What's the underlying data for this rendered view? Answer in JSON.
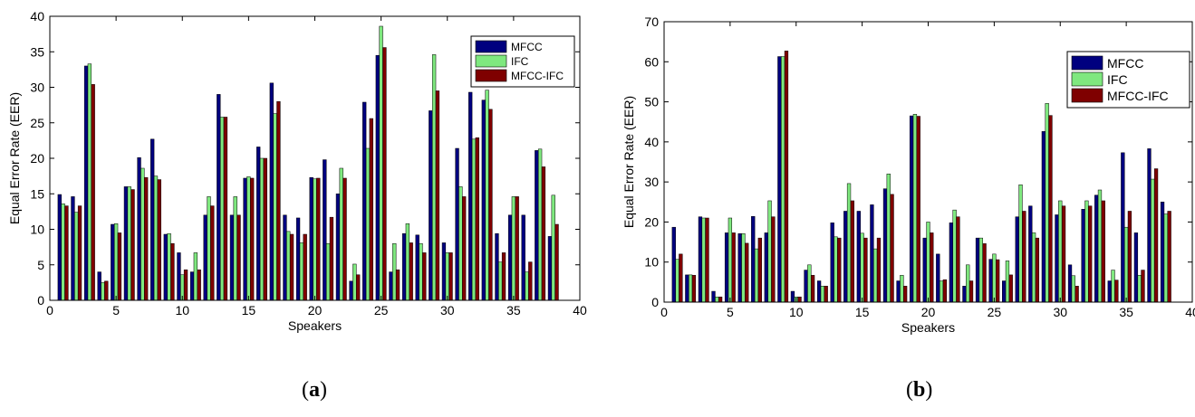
{
  "colors": {
    "MFCC": "#00007f",
    "IFC": "#7fe87f",
    "MFCC-IFC": "#7f0000"
  },
  "panel_labels": {
    "a": "a",
    "b": "b"
  },
  "chart_data": [
    {
      "type": "bar",
      "panel": "(a)",
      "xlabel": "Speakers",
      "ylabel": "Equal Error Rate (EER)",
      "xlim": [
        0,
        40
      ],
      "ylim": [
        0,
        40
      ],
      "xticks": [
        0,
        5,
        10,
        15,
        20,
        25,
        30,
        35,
        40
      ],
      "yticks": [
        0,
        5,
        10,
        15,
        20,
        25,
        30,
        35,
        40
      ],
      "legend": "top-right",
      "x": [
        1,
        2,
        3,
        4,
        5,
        6,
        7,
        8,
        9,
        10,
        11,
        12,
        13,
        14,
        15,
        16,
        17,
        18,
        19,
        20,
        21,
        22,
        23,
        24,
        25,
        26,
        27,
        28,
        29,
        30,
        31,
        32,
        33,
        34,
        35,
        36,
        37,
        38
      ],
      "series": [
        {
          "name": "MFCC",
          "values": [
            14.9,
            14.6,
            33.0,
            4.0,
            10.7,
            16.0,
            20.1,
            22.7,
            9.3,
            6.7,
            4.0,
            12.0,
            29.0,
            12.0,
            17.2,
            21.6,
            30.6,
            12.0,
            11.6,
            17.3,
            19.8,
            15.0,
            2.7,
            27.9,
            34.5,
            4.0,
            9.4,
            9.2,
            26.7,
            8.1,
            21.4,
            29.3,
            28.2,
            9.4,
            12.0,
            12.0,
            21.1,
            9.0
          ]
        },
        {
          "name": "IFC",
          "values": [
            13.6,
            12.4,
            33.3,
            2.5,
            10.8,
            16.0,
            18.6,
            17.5,
            9.4,
            3.6,
            6.7,
            14.6,
            25.8,
            14.6,
            17.4,
            20.0,
            26.3,
            9.7,
            8.1,
            17.1,
            8.0,
            18.6,
            5.1,
            21.4,
            38.6,
            8.0,
            10.8,
            8.0,
            34.6,
            6.7,
            16.0,
            22.7,
            29.6,
            5.4,
            14.6,
            4.0,
            21.3,
            14.8
          ]
        },
        {
          "name": "MFCC-IFC",
          "values": [
            13.3,
            13.3,
            30.4,
            2.7,
            9.5,
            15.6,
            17.3,
            17.0,
            8.0,
            4.3,
            4.3,
            13.3,
            25.8,
            12.0,
            17.2,
            20.0,
            28.0,
            9.3,
            9.3,
            17.2,
            11.7,
            17.2,
            3.6,
            25.6,
            35.6,
            4.3,
            8.1,
            6.7,
            29.5,
            6.7,
            14.6,
            22.9,
            26.9,
            6.7,
            14.6,
            5.4,
            18.8,
            10.7
          ]
        }
      ]
    },
    {
      "type": "bar",
      "panel": "(b)",
      "xlabel": "Speakers",
      "ylabel": "Equal Error Rate (EER)",
      "xlim": [
        0,
        40
      ],
      "ylim": [
        0,
        70
      ],
      "xticks": [
        0,
        5,
        10,
        15,
        20,
        25,
        30,
        35,
        40
      ],
      "yticks": [
        0,
        10,
        20,
        30,
        40,
        50,
        60,
        70
      ],
      "legend": "top-right",
      "x": [
        1,
        2,
        3,
        4,
        5,
        6,
        7,
        8,
        9,
        10,
        11,
        12,
        13,
        14,
        15,
        16,
        17,
        18,
        19,
        20,
        21,
        22,
        23,
        24,
        25,
        26,
        27,
        28,
        29,
        30,
        31,
        32,
        33,
        34,
        35,
        36,
        37,
        38
      ],
      "series": [
        {
          "name": "MFCC",
          "values": [
            18.7,
            6.8,
            21.3,
            2.7,
            17.3,
            17.1,
            21.4,
            17.3,
            61.3,
            2.7,
            8.0,
            5.3,
            19.8,
            22.7,
            22.7,
            24.3,
            28.3,
            5.3,
            46.5,
            16.0,
            12.0,
            19.8,
            4.0,
            16.0,
            10.7,
            5.3,
            21.3,
            24.0,
            42.6,
            21.8,
            9.3,
            23.2,
            26.7,
            5.3,
            37.3,
            17.3,
            38.3,
            25.0
          ]
        },
        {
          "name": "IFC",
          "values": [
            10.7,
            6.8,
            21.0,
            1.3,
            21.0,
            17.1,
            13.3,
            25.3,
            61.3,
            1.3,
            9.3,
            4.0,
            16.3,
            29.6,
            17.2,
            13.3,
            32.0,
            6.7,
            46.9,
            20.0,
            5.3,
            23.0,
            9.3,
            16.0,
            12.0,
            10.3,
            29.3,
            17.3,
            49.6,
            25.3,
            6.6,
            25.3,
            28.0,
            8.0,
            18.7,
            6.7,
            30.7,
            22.0
          ]
        },
        {
          "name": "MFCC-IFC",
          "values": [
            12.0,
            6.7,
            21.0,
            1.3,
            17.3,
            14.7,
            16.0,
            21.3,
            62.7,
            1.3,
            6.7,
            4.0,
            16.0,
            25.3,
            16.0,
            16.0,
            26.9,
            4.0,
            46.4,
            17.3,
            5.6,
            21.3,
            5.3,
            14.6,
            10.6,
            6.8,
            22.7,
            16.0,
            46.6,
            24.0,
            4.0,
            24.0,
            25.3,
            5.5,
            22.7,
            8.0,
            33.3,
            22.7
          ]
        }
      ]
    }
  ]
}
